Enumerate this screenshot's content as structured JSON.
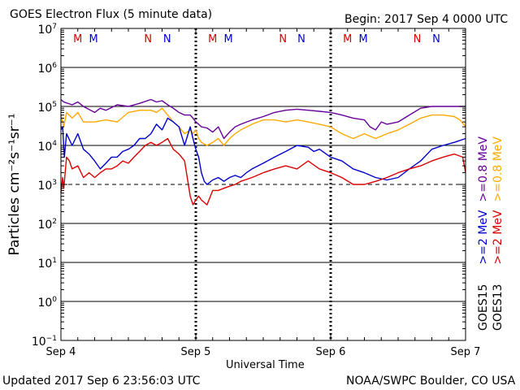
{
  "title": "GOES Electron Flux (5 minute data)",
  "begin_label": "Begin: 2017 Sep 4 0000 UTC",
  "updated_label": "Updated 2017 Sep  6 23:56:03 UTC",
  "credit": "NOAA/SWPC Boulder, CO USA",
  "chart_data": {
    "type": "line",
    "title": "GOES Electron Flux (5 minute data)",
    "xlabel": "Universal Time",
    "ylabel": "Particles cm⁻²s⁻¹sr⁻¹",
    "y_scale": "log",
    "ylim": [
      0.1,
      10000000
    ],
    "xlim": [
      0,
      72
    ],
    "x_unit": "hours since 2017 Sep 4 0000 UTC",
    "x_ticks": [
      {
        "x": 0,
        "label": "Sep 4"
      },
      {
        "x": 24,
        "label": "Sep 5"
      },
      {
        "x": 48,
        "label": "Sep 6"
      },
      {
        "x": 72,
        "label": "Sep 7"
      }
    ],
    "y_ticks": [
      {
        "exp": "7"
      },
      {
        "exp": "6"
      },
      {
        "exp": "5"
      },
      {
        "exp": "4"
      },
      {
        "exp": "3"
      },
      {
        "exp": "2"
      },
      {
        "exp": "1"
      },
      {
        "exp": "0"
      },
      {
        "exp": "−1"
      }
    ],
    "threshold": 1000,
    "grid": true,
    "legend": "right",
    "magnetopause_markers": [
      {
        "label": "M",
        "x": 3.0,
        "color": "#dd0000"
      },
      {
        "label": "M",
        "x": 5.8,
        "color": "#0000cc"
      },
      {
        "label": "N",
        "x": 15.5,
        "color": "#dd0000"
      },
      {
        "label": "N",
        "x": 18.9,
        "color": "#0000cc"
      },
      {
        "label": "M",
        "x": 27.0,
        "color": "#dd0000"
      },
      {
        "label": "M",
        "x": 29.8,
        "color": "#0000cc"
      },
      {
        "label": "N",
        "x": 39.5,
        "color": "#dd0000"
      },
      {
        "label": "N",
        "x": 42.8,
        "color": "#0000cc"
      },
      {
        "label": "M",
        "x": 51.0,
        "color": "#dd0000"
      },
      {
        "label": "M",
        "x": 53.8,
        "color": "#0000cc"
      },
      {
        "label": "N",
        "x": 63.4,
        "color": "#dd0000"
      },
      {
        "label": "N",
        "x": 66.8,
        "color": "#0000cc"
      }
    ],
    "legend_groups": [
      {
        "sat": "GOES15",
        "items": [
          {
            "name": ">=2 MeV",
            "color": "#0000cc"
          },
          {
            "name": ">=0.8 MeV",
            "color": "#660099"
          }
        ]
      },
      {
        "sat": "GOES13",
        "items": [
          {
            "name": ">=2 MeV",
            "color": "#dd0000"
          },
          {
            "name": ">=0.8 MeV",
            "color": "#ffaa00"
          }
        ]
      }
    ],
    "series": [
      {
        "name": "GOES15 >=0.8 MeV",
        "color": "#660099",
        "x": [
          0,
          0.5,
          2,
          3,
          4,
          6,
          7,
          8,
          10,
          12,
          14,
          16,
          17,
          18,
          19,
          20,
          21,
          22,
          23,
          23.5,
          24,
          24.5,
          25,
          26,
          27,
          28,
          29,
          30,
          31,
          32,
          34,
          36,
          38,
          40,
          42,
          44,
          46,
          48,
          50,
          52,
          54,
          55,
          56,
          57,
          58,
          60,
          62,
          64,
          66,
          68,
          70,
          72
        ],
        "y": [
          150000,
          130000,
          110000,
          130000,
          100000,
          70000,
          90000,
          80000,
          110000,
          100000,
          120000,
          150000,
          130000,
          140000,
          110000,
          90000,
          70000,
          60000,
          60000,
          50000,
          40000,
          35000,
          30000,
          28000,
          22000,
          30000,
          15000,
          22000,
          30000,
          35000,
          45000,
          55000,
          70000,
          80000,
          85000,
          80000,
          75000,
          70000,
          60000,
          50000,
          45000,
          30000,
          25000,
          40000,
          35000,
          40000,
          60000,
          90000,
          100000,
          100000,
          100000,
          100000
        ]
      },
      {
        "name": "GOES13 >=0.8 MeV",
        "color": "#ffaa00",
        "x": [
          0,
          0.5,
          1,
          2,
          3,
          4,
          6,
          8,
          10,
          12,
          14,
          16,
          17,
          18,
          19,
          20,
          21,
          22,
          23,
          23.5,
          24,
          24.5,
          25,
          26,
          27,
          28,
          29,
          30,
          31,
          32,
          34,
          36,
          38,
          40,
          42,
          44,
          46,
          48,
          50,
          52,
          54,
          56,
          58,
          60,
          62,
          64,
          66,
          68,
          70,
          71,
          72
        ],
        "y": [
          60000,
          30000,
          70000,
          50000,
          70000,
          40000,
          40000,
          45000,
          40000,
          70000,
          80000,
          80000,
          70000,
          90000,
          60000,
          40000,
          30000,
          20000,
          25000,
          20000,
          25000,
          15000,
          12000,
          10000,
          12000,
          15000,
          10000,
          15000,
          20000,
          25000,
          35000,
          45000,
          45000,
          40000,
          45000,
          40000,
          35000,
          30000,
          20000,
          15000,
          20000,
          15000,
          20000,
          25000,
          35000,
          50000,
          60000,
          60000,
          55000,
          45000,
          30000
        ]
      },
      {
        "name": "GOES15 >=2 MeV",
        "color": "#0000cc",
        "x": [
          0,
          0.3,
          0.6,
          1,
          2,
          3,
          4,
          5,
          6,
          7,
          8,
          9,
          10,
          11,
          12,
          13,
          14,
          15,
          16,
          17,
          18,
          19,
          20,
          21,
          22,
          23,
          23.5,
          24,
          24.5,
          25,
          25.5,
          26,
          27,
          28,
          29,
          30,
          31,
          32,
          33,
          34,
          36,
          38,
          40,
          42,
          44,
          45,
          46,
          48,
          50,
          52,
          54,
          56,
          58,
          60,
          62,
          64,
          66,
          68,
          70,
          72
        ],
        "y": [
          25000,
          30000,
          5000,
          20000,
          10000,
          20000,
          8000,
          6000,
          4000,
          2500,
          3500,
          5000,
          5000,
          7000,
          8000,
          10000,
          15000,
          15000,
          20000,
          35000,
          25000,
          50000,
          40000,
          30000,
          10000,
          30000,
          15000,
          8000,
          5000,
          2000,
          1200,
          1000,
          1300,
          1500,
          1200,
          1500,
          1700,
          1500,
          2000,
          2500,
          3500,
          5000,
          7000,
          10000,
          9000,
          7000,
          8000,
          5000,
          4000,
          2500,
          2000,
          1500,
          1300,
          1500,
          2500,
          4000,
          8000,
          10000,
          12000,
          15000
        ]
      },
      {
        "name": "GOES13 >=2 MeV",
        "color": "#dd0000",
        "x": [
          0,
          0.3,
          0.5,
          1,
          1.5,
          2,
          3,
          4,
          5,
          6,
          7,
          8,
          9,
          10,
          11,
          12,
          13,
          14,
          15,
          16,
          17,
          18,
          19,
          20,
          21,
          22,
          23,
          23.5,
          24,
          24.5,
          25,
          26,
          27,
          28,
          29,
          30,
          31,
          32,
          34,
          36,
          38,
          40,
          42,
          44,
          46,
          48,
          50,
          52,
          54,
          56,
          58,
          60,
          62,
          64,
          66,
          68,
          70,
          71.5,
          72
        ],
        "y": [
          600,
          1500,
          800,
          5000,
          4000,
          2500,
          3000,
          1500,
          2000,
          1500,
          2000,
          2500,
          2500,
          3000,
          4000,
          3500,
          5000,
          7000,
          10000,
          12000,
          10000,
          12000,
          15000,
          8000,
          6000,
          4000,
          500,
          300,
          400,
          500,
          400,
          300,
          700,
          700,
          800,
          900,
          1000,
          1200,
          1500,
          2000,
          2500,
          3000,
          2500,
          4000,
          2500,
          2000,
          1500,
          1000,
          1000,
          1200,
          1500,
          2000,
          2500,
          3000,
          4000,
          5000,
          6000,
          5000,
          2000
        ]
      }
    ]
  }
}
